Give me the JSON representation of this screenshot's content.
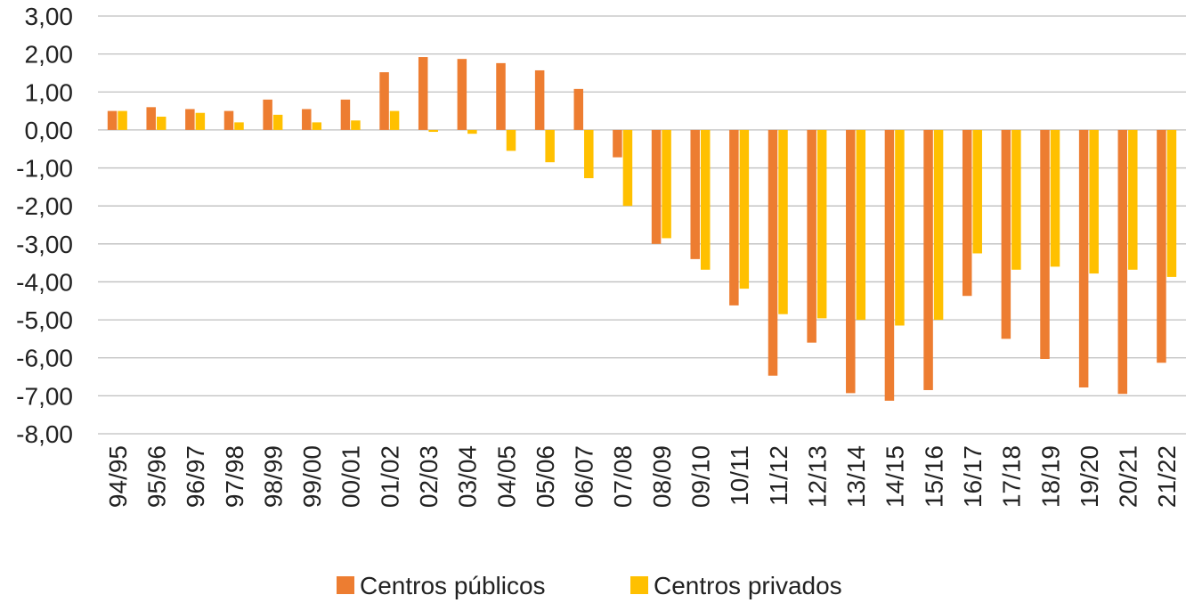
{
  "chart_data": {
    "type": "bar",
    "title": "",
    "xlabel": "",
    "ylabel": "",
    "ylim": [
      -8,
      3
    ],
    "yticks": [
      "3,00",
      "2,00",
      "1,00",
      "0,00",
      "-1,00",
      "-2,00",
      "-3,00",
      "-4,00",
      "-5,00",
      "-6,00",
      "-7,00",
      "-8,00"
    ],
    "grid": true,
    "legend_position": "bottom",
    "categories": [
      "94/95",
      "95/96",
      "96/97",
      "97/98",
      "98/99",
      "99/00",
      "00/01",
      "01/02",
      "02/03",
      "03/04",
      "04/05",
      "05/06",
      "06/07",
      "07/08",
      "08/09",
      "09/10",
      "10/11",
      "11/12",
      "12/13",
      "13/14",
      "14/15",
      "15/16",
      "16/17",
      "17/18",
      "18/19",
      "19/20",
      "20/21",
      "21/22"
    ],
    "series": [
      {
        "name": "Centros públicos",
        "color": "#ED7D31",
        "values": [
          0.5,
          0.6,
          0.55,
          0.5,
          0.8,
          0.55,
          0.8,
          1.52,
          1.92,
          1.87,
          1.76,
          1.57,
          1.08,
          -0.72,
          -3.0,
          -3.4,
          -4.62,
          -6.47,
          -5.6,
          -6.93,
          -7.13,
          -6.85,
          -4.37,
          -5.5,
          -6.03,
          -6.78,
          -6.95,
          -6.13
        ]
      },
      {
        "name": "Centros privados",
        "color": "#FFC000",
        "values": [
          0.5,
          0.35,
          0.45,
          0.2,
          0.4,
          0.2,
          0.25,
          0.5,
          -0.05,
          -0.1,
          -0.55,
          -0.85,
          -1.27,
          -2.0,
          -2.85,
          -3.68,
          -4.18,
          -4.85,
          -4.96,
          -5.0,
          -5.15,
          -5.0,
          -3.25,
          -3.68,
          -3.6,
          -3.78,
          -3.68,
          -3.87
        ]
      }
    ]
  }
}
